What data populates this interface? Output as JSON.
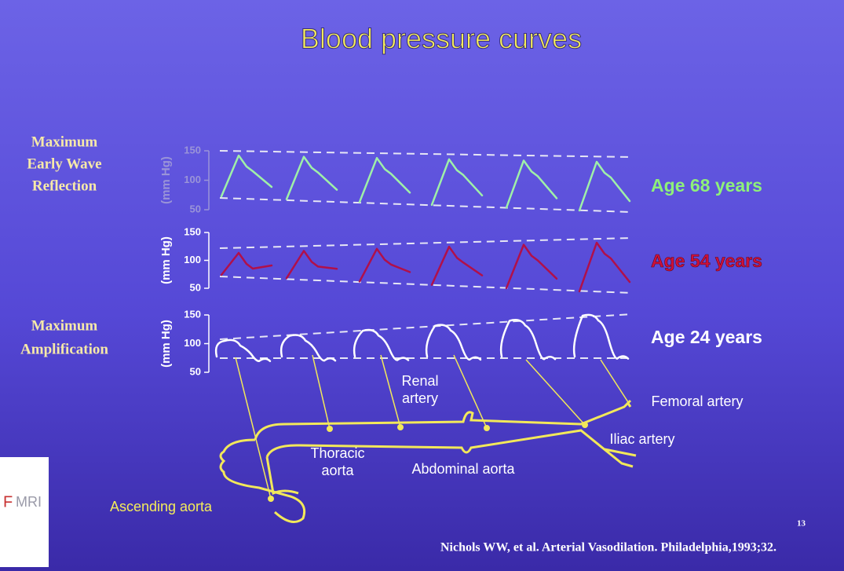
{
  "title": "Blood pressure curves",
  "side_labels": [
    {
      "lines": [
        "Maximum",
        "Early Wave",
        "Reflection"
      ]
    },
    {
      "lines": [
        "Maximum",
        "Amplification"
      ]
    }
  ],
  "panels": [
    {
      "axis_label": "(mm Hg)",
      "ticks": [
        "150",
        "100",
        "50"
      ],
      "age": "Age 68 years"
    },
    {
      "axis_label": "(mm Hg)",
      "ticks": [
        "150",
        "100",
        "50"
      ],
      "age": "Age 54 years"
    },
    {
      "axis_label": "(mm Hg)",
      "ticks": [
        "150",
        "100",
        "50"
      ],
      "age": "Age 24 years"
    }
  ],
  "artery_labels": {
    "renal": [
      "Renal",
      "artery"
    ],
    "femoral": "Femoral artery",
    "iliac": "Iliac artery",
    "thoracic": [
      "Thoracic",
      "aorta"
    ],
    "abdominal": "Abdominal aorta",
    "ascending": "Ascending aorta"
  },
  "logo": {
    "left": "F",
    "right": "MRI"
  },
  "page_number": "13",
  "citation": "Nichols WW, et al. Arterial Vasodilation. Philadelphia,1993;32."
}
